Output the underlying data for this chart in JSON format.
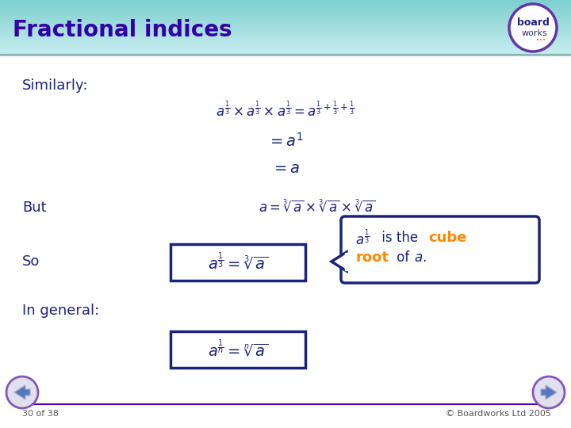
{
  "title": "Fractional indices",
  "title_color": "#3300AA",
  "bg_color": "#FFFFFF",
  "header_top_color": "#7ECFCF",
  "header_bottom_color": "#C8EEF0",
  "stripe_color": "#8BBABA",
  "blue_color": "#1A237E",
  "orange_color": "#FF8800",
  "box_edge_color": "#1A237E",
  "box_face_color": "#FFFFFF",
  "footer_line_color": "#5500AA",
  "footer_text_color": "#555555",
  "nav_fill": "#9999CC",
  "nav_edge": "#6633AA",
  "footer_text": "30 of 38",
  "copyright_text": "© Boardworks Ltd 2005",
  "similarly_label": "Similarly:",
  "but_label": "But",
  "so_label": "So",
  "general_label": "In general:"
}
